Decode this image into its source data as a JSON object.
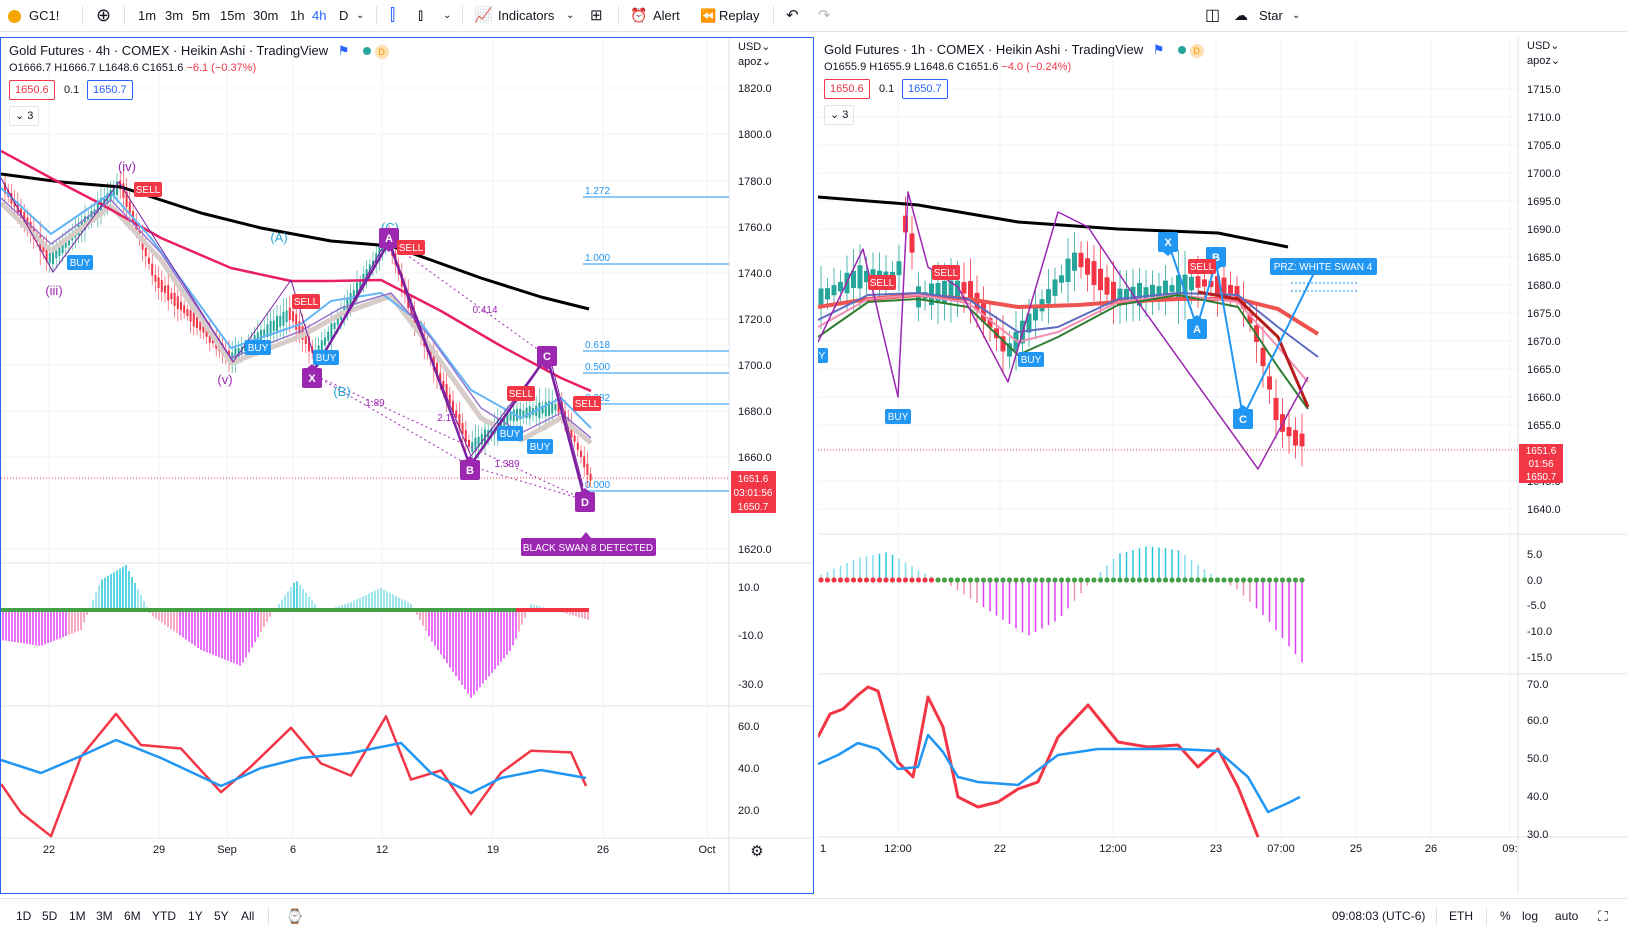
{
  "toolbar": {
    "symbol": "GC1!",
    "intervals": [
      "1m",
      "3m",
      "5m",
      "15m",
      "30m",
      "1h",
      "4h",
      "D"
    ],
    "active_interval": "4h",
    "indicators_label": "Indicators",
    "alert_label": "Alert",
    "replay_label": "Replay",
    "layout_name": "Star"
  },
  "left_chart": {
    "title": "Gold Futures · 4h · COMEX · Heikin Ashi · TradingView",
    "ohlc": {
      "o": "O1666.7",
      "h": "H1666.7",
      "l": "L1648.6",
      "c": "C1651.6",
      "chg": "−6.1 (−0.37%)"
    },
    "bid": "1650.6",
    "spread": "0.1",
    "ask": "1650.7",
    "indicator_count": "3",
    "currency": "USD",
    "scale_mode": "apoz",
    "price_ticks": [
      "1820.0",
      "1800.0",
      "1780.0",
      "1760.0",
      "1740.0",
      "1720.0",
      "1700.0",
      "1680.0",
      "1660.0",
      "1620.0"
    ],
    "macd_ticks": [
      "10.0",
      "-10.0",
      "-30.0"
    ],
    "rsi_ticks": [
      "60.0",
      "40.0",
      "20.0"
    ],
    "time_ticks": [
      "22",
      "29",
      "Sep",
      "6",
      "12",
      "19",
      "26",
      "Oct"
    ],
    "last_price": "1651.6",
    "countdown": "03:01:56",
    "last_ask": "1650.7",
    "fib_labels": [
      "1.272",
      "1.000",
      "0.618",
      "0.500",
      "0.382",
      "0.000"
    ],
    "wave_labels": [
      "(iv)",
      "(iii)",
      "(v)",
      "(A)",
      "(B)",
      "(C)"
    ],
    "pattern_points": [
      "X",
      "A",
      "B",
      "C",
      "D"
    ],
    "ratio_labels": [
      "0.414",
      "1.89",
      "2.15",
      "1.389"
    ],
    "signals": {
      "buy": "BUY",
      "sell": "SELL"
    },
    "pattern_banner": "BLACK SWAN 8 DETECTED"
  },
  "right_chart": {
    "title": "Gold Futures · 1h · COMEX · Heikin Ashi · TradingView",
    "ohlc": {
      "o": "O1655.9",
      "h": "H1655.9",
      "l": "L1648.6",
      "c": "C1651.6",
      "chg": "−4.0 (−0.24%)"
    },
    "bid": "1650.6",
    "spread": "0.1",
    "ask": "1650.7",
    "indicator_count": "3",
    "currency": "USD",
    "scale_mode": "apoz",
    "price_ticks": [
      "1715.0",
      "1710.0",
      "1705.0",
      "1700.0",
      "1695.0",
      "1690.0",
      "1685.0",
      "1680.0",
      "1675.0",
      "1670.0",
      "1665.0",
      "1660.0",
      "1655.0",
      "1645.0",
      "1640.0"
    ],
    "macd_ticks": [
      "5.0",
      "0.0",
      "-5.0",
      "-10.0",
      "-15.0"
    ],
    "rsi_ticks": [
      "70.0",
      "60.0",
      "50.0",
      "40.0",
      "30.0"
    ],
    "time_ticks": [
      "1",
      "12:00",
      "22",
      "12:00",
      "23",
      "07:00",
      "25",
      "26",
      "09:"
    ],
    "last_price": "1651.6",
    "countdown": "01:56",
    "last_ask": "1650.7",
    "pattern_points": [
      "X",
      "A",
      "B",
      "C"
    ],
    "signals": {
      "buy": "BUY",
      "sell": "SELL"
    },
    "prz_label": "PRZ: WHITE SWAN 4"
  },
  "bottombar": {
    "ranges": [
      "1D",
      "5D",
      "1M",
      "3M",
      "6M",
      "YTD",
      "1Y",
      "5Y",
      "All"
    ],
    "clock": "09:08:03 (UTC-6)",
    "session": "ETH",
    "percent": "%",
    "log": "log",
    "auto": "auto"
  },
  "colors": {
    "accent": "#2962ff",
    "up": "#26a69a",
    "down": "#f23645",
    "purple": "#9c27b0",
    "fib": "#2196f3"
  }
}
